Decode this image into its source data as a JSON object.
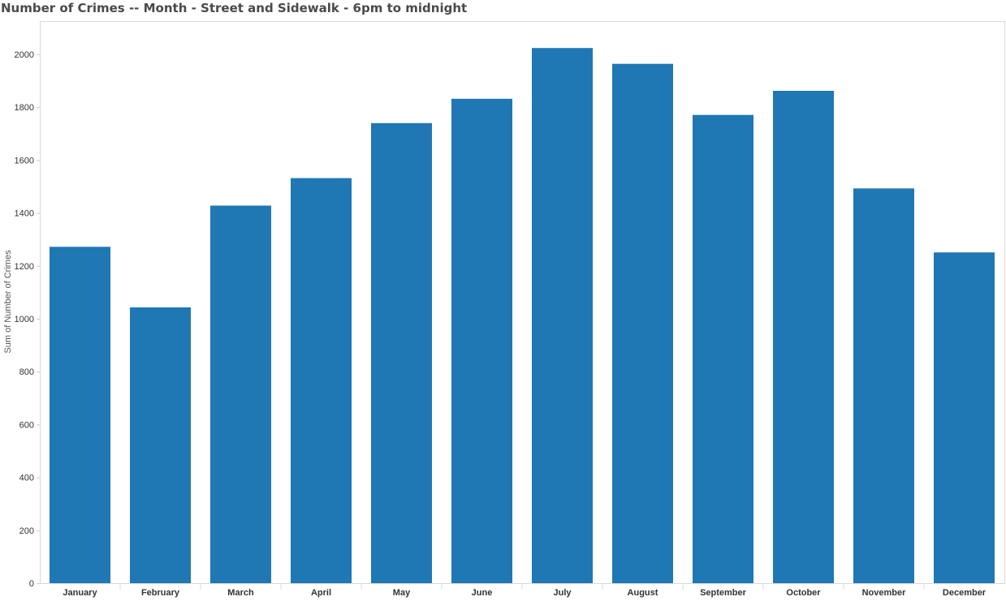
{
  "chart_data": {
    "type": "bar",
    "title": "Number of Crimes -- Month - Street and Sidewalk - 6pm to midnight",
    "xlabel": "",
    "ylabel": "Sum of Number of Crimes",
    "categories": [
      "January",
      "February",
      "March",
      "April",
      "May",
      "June",
      "July",
      "August",
      "September",
      "October",
      "November",
      "December"
    ],
    "values": [
      1272,
      1043,
      1428,
      1532,
      1740,
      1832,
      2024,
      1964,
      1771,
      1862,
      1493,
      1251
    ],
    "ylim": [
      0,
      2120
    ],
    "yticks": [
      0,
      200,
      400,
      600,
      800,
      1000,
      1200,
      1400,
      1600,
      1800,
      2000
    ],
    "grid": false,
    "bar_color": "#1f77b4"
  }
}
